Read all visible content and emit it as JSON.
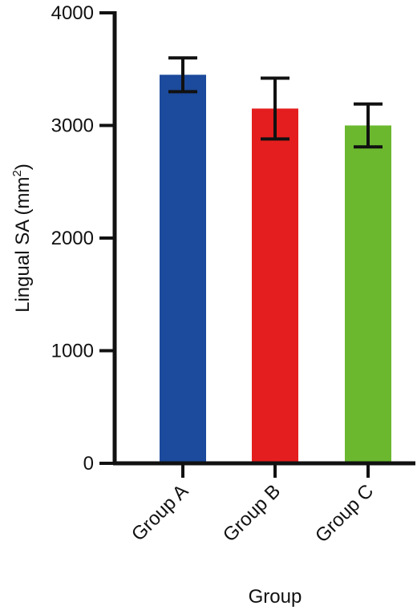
{
  "chart_data": {
    "type": "bar",
    "categories": [
      "Group A",
      "Group B",
      "Group C"
    ],
    "values": [
      3450,
      3150,
      3000
    ],
    "errors": [
      150,
      270,
      190
    ],
    "colors": [
      "#1c4a9c",
      "#e41e1e",
      "#6bb82f"
    ],
    "xlabel": "Group",
    "ylabel_main": "Lingual SA (mm",
    "ylabel_sup": "2",
    "ylabel_close": ")",
    "ylim": [
      0,
      4000
    ],
    "yticks": [
      "0",
      "1000",
      "2000",
      "3000",
      "4000"
    ],
    "grid": false,
    "legend": "none"
  }
}
